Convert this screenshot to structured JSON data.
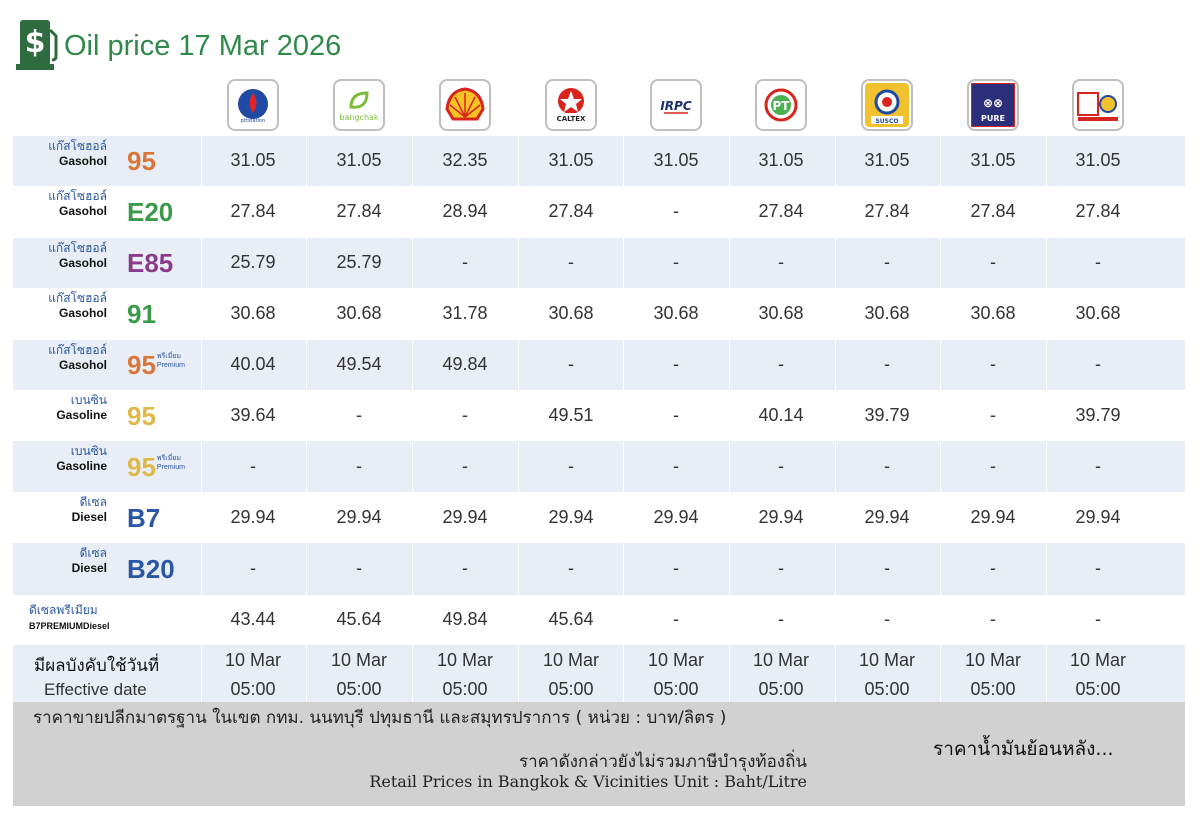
{
  "header": {
    "title": "Oil price 17 Mar 2026",
    "icon": "fuel-price-icon"
  },
  "brands": [
    {
      "id": "ptt",
      "logo_text": "",
      "icon": "ptt-logo"
    },
    {
      "id": "bangchak",
      "logo_text": "bangchak",
      "icon": "bangchak-logo"
    },
    {
      "id": "shell",
      "logo_text": "",
      "icon": "shell-logo"
    },
    {
      "id": "caltex",
      "logo_text": "CALTEX",
      "icon": "caltex-logo"
    },
    {
      "id": "irpc",
      "logo_text": "IRPC",
      "icon": "irpc-logo"
    },
    {
      "id": "pt",
      "logo_text": "PT",
      "icon": "pt-logo"
    },
    {
      "id": "susco",
      "logo_text": "SUSCO",
      "icon": "susco-logo"
    },
    {
      "id": "pure",
      "logo_text": "PURE",
      "icon": "pure-logo"
    },
    {
      "id": "other",
      "logo_text": "",
      "icon": "station-logo"
    }
  ],
  "fuels": [
    {
      "th": "แก๊สโซฮอล์",
      "en": "Gasohol",
      "grade": "95",
      "premium": false,
      "color": "#d9773a",
      "prices": [
        "31.05",
        "31.05",
        "32.35",
        "31.05",
        "31.05",
        "31.05",
        "31.05",
        "31.05",
        "31.05"
      ]
    },
    {
      "th": "แก๊สโซฮอล์",
      "en": "Gasohol",
      "grade": "E20",
      "premium": false,
      "color": "#3b9a4a",
      "prices": [
        "27.84",
        "27.84",
        "28.94",
        "27.84",
        "-",
        "27.84",
        "27.84",
        "27.84",
        "27.84"
      ]
    },
    {
      "th": "แก๊สโซฮอล์",
      "en": "Gasohol",
      "grade": "E85",
      "premium": false,
      "color": "#8a3a8a",
      "prices": [
        "25.79",
        "25.79",
        "-",
        "-",
        "-",
        "-",
        "-",
        "-",
        "-"
      ]
    },
    {
      "th": "แก๊สโซฮอล์",
      "en": "Gasohol",
      "grade": "91",
      "premium": false,
      "color": "#3b9a4a",
      "prices": [
        "30.68",
        "30.68",
        "31.78",
        "30.68",
        "30.68",
        "30.68",
        "30.68",
        "30.68",
        "30.68"
      ]
    },
    {
      "th": "แก๊สโซฮอล์",
      "en": "Gasohol",
      "grade": "95",
      "premium": true,
      "premium_th": "พรีเมี่ยม",
      "premium_en": "Premium",
      "color": "#d9773a",
      "prices": [
        "40.04",
        "49.54",
        "49.84",
        "-",
        "-",
        "-",
        "-",
        "-",
        "-"
      ]
    },
    {
      "th": "เบนซิน",
      "en": "Gasoline",
      "grade": "95",
      "premium": false,
      "color": "#e0b84a",
      "prices": [
        "39.64",
        "-",
        "-",
        "49.51",
        "-",
        "40.14",
        "39.79",
        "-",
        "39.79"
      ]
    },
    {
      "th": "เบนซิน",
      "en": "Gasoline",
      "grade": "95",
      "premium": true,
      "premium_th": "พรีเมี่ยม",
      "premium_en": "Premium",
      "color": "#e0b84a",
      "prices": [
        "-",
        "-",
        "-",
        "-",
        "-",
        "-",
        "-",
        "-",
        "-"
      ]
    },
    {
      "th": "ดีเซล",
      "en": "Diesel",
      "grade": "B7",
      "premium": false,
      "color": "#2a57a3",
      "prices": [
        "29.94",
        "29.94",
        "29.94",
        "29.94",
        "29.94",
        "29.94",
        "29.94",
        "29.94",
        "29.94"
      ]
    },
    {
      "th": "ดีเซล",
      "en": "Diesel",
      "grade": "B20",
      "premium": false,
      "color": "#2a57a3",
      "prices": [
        "-",
        "-",
        "-",
        "-",
        "-",
        "-",
        "-",
        "-",
        "-"
      ]
    },
    {
      "th": "ดีเซลพรีเมียม",
      "en": "B7PREMIUMDiesel",
      "grade": "",
      "premium": false,
      "color": "#2a57a3",
      "prices": [
        "43.44",
        "45.64",
        "49.84",
        "45.64",
        "-",
        "-",
        "-",
        "-",
        "-"
      ]
    }
  ],
  "effective": {
    "label_th": "มีผลบังคับใช้วันที่",
    "label_en": "Effective date",
    "dates": [
      "10 Mar",
      "10 Mar",
      "10 Mar",
      "10 Mar",
      "10 Mar",
      "10 Mar",
      "10 Mar",
      "10 Mar",
      "10 Mar"
    ],
    "times": [
      "05:00",
      "05:00",
      "05:00",
      "05:00",
      "05:00",
      "05:00",
      "05:00",
      "05:00",
      "05:00"
    ]
  },
  "footer": {
    "line1": "ราคาขายปลีกมาตรฐาน ในเขต กทม. นนทบุรี ปทุมธานี และสมุทรปราการ ( หน่วย : บาท/ลิตร )",
    "line3": "ราคาดังกล่าวยังไม่รวมภาษีบำรุงท้องถิ่น",
    "line4": "Retail Prices in Bangkok & Vicinities Unit : Baht/Litre",
    "history_link": "ราคาน้ำมันย้อนหลัง..."
  }
}
